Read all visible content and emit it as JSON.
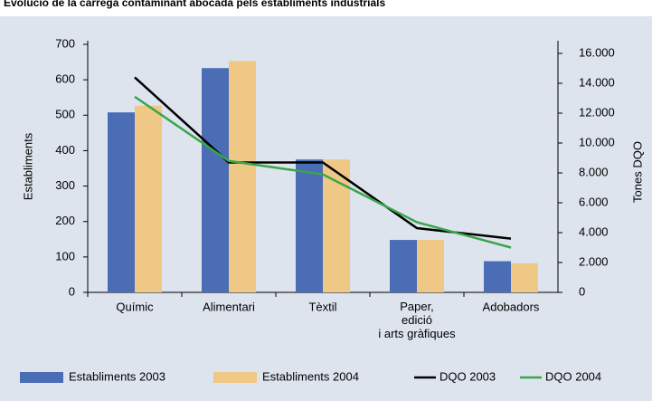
{
  "chart_data": {
    "type": "bar",
    "title": "Evolució de la càrrega contaminant abocada pels establiments industrials",
    "categories": [
      "Químic",
      "Alimentari",
      "Tèxtil",
      "Paper, edició i arts gràfiques",
      "Adobadors"
    ],
    "ylabel": "Establiments",
    "y2label": "Tones DQO",
    "ylim": [
      0,
      700
    ],
    "yticks": [
      0,
      100,
      200,
      300,
      400,
      500,
      600,
      700
    ],
    "y2lim": [
      0,
      16000
    ],
    "y2ticks": [
      0,
      {
        "value": 2000,
        "label": "2.000"
      },
      {
        "value": 4000,
        "label": "4.000"
      },
      {
        "value": 6000,
        "label": "6.000"
      },
      {
        "value": 8000,
        "label": "8.000"
      },
      {
        "value": 10000,
        "label": "10.000"
      },
      {
        "value": 12000,
        "label": "12.000"
      },
      {
        "value": 14000,
        "label": "14.000"
      },
      {
        "value": 16000,
        "label": "16.000"
      }
    ],
    "series": [
      {
        "name": "Establiments 2003",
        "type": "bar",
        "color": "#4a6db5",
        "values": [
          508,
          633,
          375,
          148,
          88
        ]
      },
      {
        "name": "Establiments 2004",
        "type": "bar",
        "color": "#efc886",
        "values": [
          527,
          653,
          375,
          148,
          82
        ]
      },
      {
        "name": "DQO 2003",
        "type": "line",
        "axis": "y2",
        "color": "#000000",
        "values": [
          14400,
          8700,
          8700,
          4300,
          3600
        ]
      },
      {
        "name": "DQO 2004",
        "type": "line",
        "axis": "y2",
        "color": "#3aa54a",
        "values": [
          13100,
          8800,
          7900,
          4700,
          3000
        ]
      }
    ]
  }
}
